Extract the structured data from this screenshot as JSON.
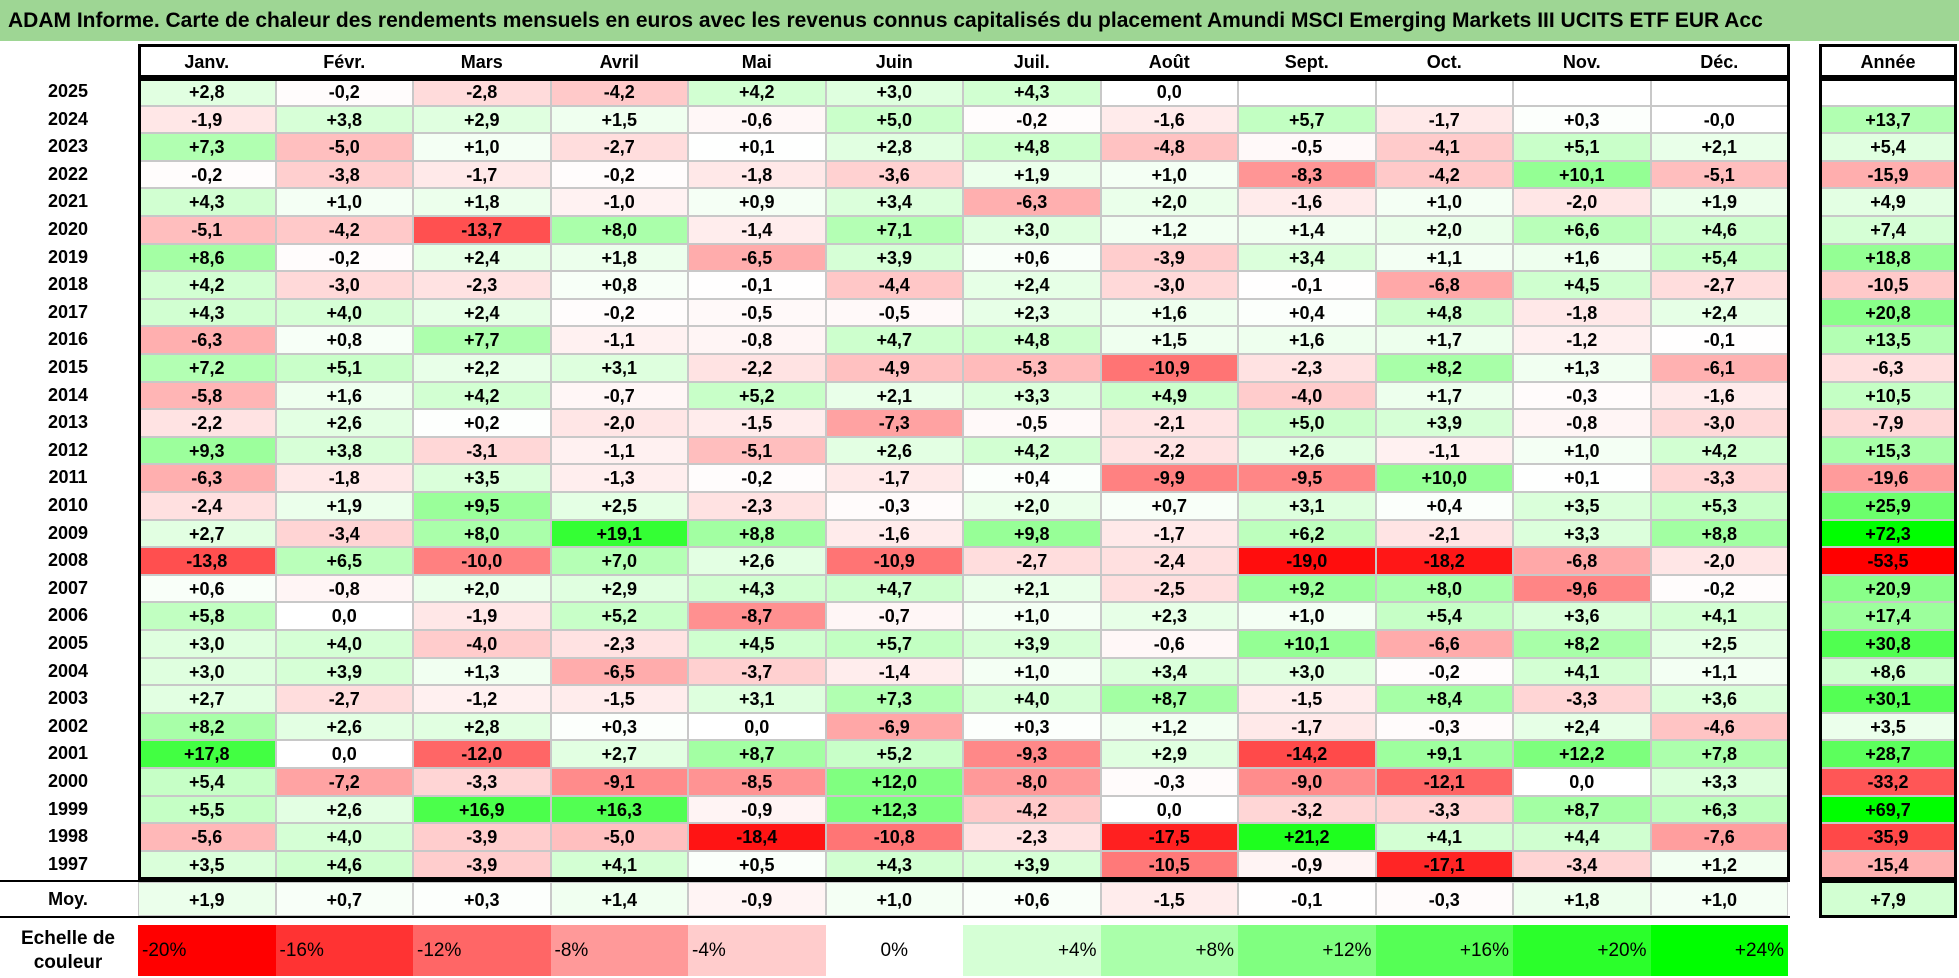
{
  "title": "ADAM Informe. Carte de chaleur des rendements mensuels en euros avec les revenus connus capitalisés du placement Amundi MSCI Emerging Markets III UCITS ETF EUR Acc",
  "colors": {
    "title_bg": "#9ed694",
    "negative": "#ff0000",
    "positive": "#00ff00",
    "zero": "#ffffff"
  },
  "chart_data": {
    "type": "heatmap",
    "title": "ADAM Informe. Carte de chaleur des rendements mensuels en euros avec les revenus connus capitalisés du placement Amundi MSCI Emerging Markets III UCITS ETF EUR Acc",
    "months": [
      "Janv.",
      "Févr.",
      "Mars",
      "Avril",
      "Mai",
      "Juin",
      "Juil.",
      "Août",
      "Sept.",
      "Oct.",
      "Nov.",
      "Déc."
    ],
    "year_header": "Année",
    "rows": [
      {
        "year": "2025",
        "values": [
          "+2,8",
          "-0,2",
          "-2,8",
          "-4,2",
          "+4,2",
          "+3,0",
          "+4,3",
          "0,0",
          "",
          "",
          "",
          ""
        ],
        "annual": ""
      },
      {
        "year": "2024",
        "values": [
          "-1,9",
          "+3,8",
          "+2,9",
          "+1,5",
          "-0,6",
          "+5,0",
          "-0,2",
          "-1,6",
          "+5,7",
          "-1,7",
          "+0,3",
          "-0,0"
        ],
        "annual": "+13,7"
      },
      {
        "year": "2023",
        "values": [
          "+7,3",
          "-5,0",
          "+1,0",
          "-2,7",
          "+0,1",
          "+2,8",
          "+4,8",
          "-4,8",
          "-0,5",
          "-4,1",
          "+5,1",
          "+2,1"
        ],
        "annual": "+5,4"
      },
      {
        "year": "2022",
        "values": [
          "-0,2",
          "-3,8",
          "-1,7",
          "-0,2",
          "-1,8",
          "-3,6",
          "+1,9",
          "+1,0",
          "-8,3",
          "-4,2",
          "+10,1",
          "-5,1"
        ],
        "annual": "-15,9"
      },
      {
        "year": "2021",
        "values": [
          "+4,3",
          "+1,0",
          "+1,8",
          "-1,0",
          "+0,9",
          "+3,4",
          "-6,3",
          "+2,0",
          "-1,6",
          "+1,0",
          "-2,0",
          "+1,9"
        ],
        "annual": "+4,9"
      },
      {
        "year": "2020",
        "values": [
          "-5,1",
          "-4,2",
          "-13,7",
          "+8,0",
          "-1,4",
          "+7,1",
          "+3,0",
          "+1,2",
          "+1,4",
          "+2,0",
          "+6,6",
          "+4,6"
        ],
        "annual": "+7,4"
      },
      {
        "year": "2019",
        "values": [
          "+8,6",
          "-0,2",
          "+2,4",
          "+1,8",
          "-6,5",
          "+3,9",
          "+0,6",
          "-3,9",
          "+3,4",
          "+1,1",
          "+1,6",
          "+5,4"
        ],
        "annual": "+18,8"
      },
      {
        "year": "2018",
        "values": [
          "+4,2",
          "-3,0",
          "-2,3",
          "+0,8",
          "-0,1",
          "-4,4",
          "+2,4",
          "-3,0",
          "-0,1",
          "-6,8",
          "+4,5",
          "-2,7"
        ],
        "annual": "-10,5"
      },
      {
        "year": "2017",
        "values": [
          "+4,3",
          "+4,0",
          "+2,4",
          "-0,2",
          "-0,5",
          "-0,5",
          "+2,3",
          "+1,6",
          "+0,4",
          "+4,8",
          "-1,8",
          "+2,4"
        ],
        "annual": "+20,8"
      },
      {
        "year": "2016",
        "values": [
          "-6,3",
          "+0,8",
          "+7,7",
          "-1,1",
          "-0,8",
          "+4,7",
          "+4,8",
          "+1,5",
          "+1,6",
          "+1,7",
          "-1,2",
          "-0,1"
        ],
        "annual": "+13,5"
      },
      {
        "year": "2015",
        "values": [
          "+7,2",
          "+5,1",
          "+2,2",
          "+3,1",
          "-2,2",
          "-4,9",
          "-5,3",
          "-10,9",
          "-2,3",
          "+8,2",
          "+1,3",
          "-6,1"
        ],
        "annual": "-6,3"
      },
      {
        "year": "2014",
        "values": [
          "-5,8",
          "+1,6",
          "+4,2",
          "-0,7",
          "+5,2",
          "+2,1",
          "+3,3",
          "+4,9",
          "-4,0",
          "+1,7",
          "-0,3",
          "-1,6"
        ],
        "annual": "+10,5"
      },
      {
        "year": "2013",
        "values": [
          "-2,2",
          "+2,6",
          "+0,2",
          "-2,0",
          "-1,5",
          "-7,3",
          "-0,5",
          "-2,1",
          "+5,0",
          "+3,9",
          "-0,8",
          "-3,0"
        ],
        "annual": "-7,9"
      },
      {
        "year": "2012",
        "values": [
          "+9,3",
          "+3,8",
          "-3,1",
          "-1,1",
          "-5,1",
          "+2,6",
          "+4,2",
          "-2,2",
          "+2,6",
          "-1,1",
          "+1,0",
          "+4,2"
        ],
        "annual": "+15,3"
      },
      {
        "year": "2011",
        "values": [
          "-6,3",
          "-1,8",
          "+3,5",
          "-1,3",
          "-0,2",
          "-1,7",
          "+0,4",
          "-9,9",
          "-9,5",
          "+10,0",
          "+0,1",
          "-3,3"
        ],
        "annual": "-19,6"
      },
      {
        "year": "2010",
        "values": [
          "-2,4",
          "+1,9",
          "+9,5",
          "+2,5",
          "-2,3",
          "-0,3",
          "+2,0",
          "+0,7",
          "+3,1",
          "+0,4",
          "+3,5",
          "+5,3"
        ],
        "annual": "+25,9"
      },
      {
        "year": "2009",
        "values": [
          "+2,7",
          "-3,4",
          "+8,0",
          "+19,1",
          "+8,8",
          "-1,6",
          "+9,8",
          "-1,7",
          "+6,2",
          "-2,1",
          "+3,3",
          "+8,8"
        ],
        "annual": "+72,3"
      },
      {
        "year": "2008",
        "values": [
          "-13,8",
          "+6,5",
          "-10,0",
          "+7,0",
          "+2,6",
          "-10,9",
          "-2,7",
          "-2,4",
          "-19,0",
          "-18,2",
          "-6,8",
          "-2,0"
        ],
        "annual": "-53,5"
      },
      {
        "year": "2007",
        "values": [
          "+0,6",
          "-0,8",
          "+2,0",
          "+2,9",
          "+4,3",
          "+4,7",
          "+2,1",
          "-2,5",
          "+9,2",
          "+8,0",
          "-9,6",
          "-0,2"
        ],
        "annual": "+20,9"
      },
      {
        "year": "2006",
        "values": [
          "+5,8",
          "0,0",
          "-1,9",
          "+5,2",
          "-8,7",
          "-0,7",
          "+1,0",
          "+2,3",
          "+1,0",
          "+5,4",
          "+3,6",
          "+4,1"
        ],
        "annual": "+17,4"
      },
      {
        "year": "2005",
        "values": [
          "+3,0",
          "+4,0",
          "-4,0",
          "-2,3",
          "+4,5",
          "+5,7",
          "+3,9",
          "-0,6",
          "+10,1",
          "-6,6",
          "+8,2",
          "+2,5"
        ],
        "annual": "+30,8"
      },
      {
        "year": "2004",
        "values": [
          "+3,0",
          "+3,9",
          "+1,3",
          "-6,5",
          "-3,7",
          "-1,4",
          "+1,0",
          "+3,4",
          "+3,0",
          "-0,2",
          "+4,1",
          "+1,1"
        ],
        "annual": "+8,6"
      },
      {
        "year": "2003",
        "values": [
          "+2,7",
          "-2,7",
          "-1,2",
          "-1,5",
          "+3,1",
          "+7,3",
          "+4,0",
          "+8,7",
          "-1,5",
          "+8,4",
          "-3,3",
          "+3,6"
        ],
        "annual": "+30,1"
      },
      {
        "year": "2002",
        "values": [
          "+8,2",
          "+2,6",
          "+2,8",
          "+0,3",
          "0,0",
          "-6,9",
          "+0,3",
          "+1,2",
          "-1,7",
          "-0,3",
          "+2,4",
          "-4,6"
        ],
        "annual": "+3,5"
      },
      {
        "year": "2001",
        "values": [
          "+17,8",
          "0,0",
          "-12,0",
          "+2,7",
          "+8,7",
          "+5,2",
          "-9,3",
          "+2,9",
          "-14,2",
          "+9,1",
          "+12,2",
          "+7,8"
        ],
        "annual": "+28,7"
      },
      {
        "year": "2000",
        "values": [
          "+5,4",
          "-7,2",
          "-3,3",
          "-9,1",
          "-8,5",
          "+12,0",
          "-8,0",
          "-0,3",
          "-9,0",
          "-12,1",
          "0,0",
          "+3,3"
        ],
        "annual": "-33,2"
      },
      {
        "year": "1999",
        "values": [
          "+5,5",
          "+2,6",
          "+16,9",
          "+16,3",
          "-0,9",
          "+12,3",
          "-4,2",
          "0,0",
          "-3,2",
          "-3,3",
          "+8,7",
          "+6,3"
        ],
        "annual": "+69,7"
      },
      {
        "year": "1998",
        "values": [
          "-5,6",
          "+4,0",
          "-3,9",
          "-5,0",
          "-18,4",
          "-10,8",
          "-2,3",
          "-17,5",
          "+21,2",
          "+4,1",
          "+4,4",
          "-7,6"
        ],
        "annual": "-35,9"
      },
      {
        "year": "1997",
        "values": [
          "+3,5",
          "+4,6",
          "-3,9",
          "+4,1",
          "+0,5",
          "+4,3",
          "+3,9",
          "-10,5",
          "-0,9",
          "-17,1",
          "-3,4",
          "+1,2"
        ],
        "annual": "-15,4"
      }
    ],
    "average": {
      "label": "Moy.",
      "values": [
        "+1,9",
        "+0,7",
        "+0,3",
        "+1,4",
        "-0,9",
        "+1,0",
        "+0,6",
        "-1,5",
        "-0,1",
        "-0,3",
        "+1,8",
        "+1,0"
      ],
      "annual": "+7,9"
    },
    "scale": {
      "label": "Echelle de couleur",
      "steps": [
        {
          "text": "-20%",
          "value": -20
        },
        {
          "text": "-16%",
          "value": -16
        },
        {
          "text": "-12%",
          "value": -12
        },
        {
          "text": "-8%",
          "value": -8
        },
        {
          "text": "-4%",
          "value": -4
        },
        {
          "text": "0%",
          "value": 0
        },
        {
          "text": "+4%",
          "value": 4
        },
        {
          "text": "+8%",
          "value": 8
        },
        {
          "text": "+12%",
          "value": 12
        },
        {
          "text": "+16%",
          "value": 16
        },
        {
          "text": "+20%",
          "value": 20
        },
        {
          "text": "+24%",
          "value": 24
        }
      ]
    }
  }
}
